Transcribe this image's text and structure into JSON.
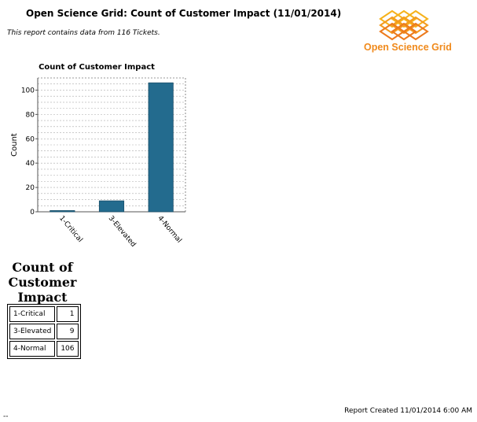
{
  "header": {
    "title": "Open Science Grid: Count of Customer Impact (11/01/2014)",
    "subtitle": "This report contains data from 116 Tickets."
  },
  "logo": {
    "text": "Open Science Grid",
    "icon": "osg-logo-icon",
    "color": "#f08a1c"
  },
  "chart_data": {
    "type": "bar",
    "title": "Count of Customer Impact",
    "xlabel": "",
    "ylabel": "Count",
    "categories": [
      "1-Critical",
      "3-Elevated",
      "4-Normal"
    ],
    "values": [
      1,
      9,
      106
    ],
    "ylim": [
      0,
      110
    ],
    "yticks": [
      0,
      20,
      40,
      60,
      80,
      100
    ],
    "grid": true,
    "bar_color": "#236b8e"
  },
  "table": {
    "title": "Count of Customer Impact",
    "rows": [
      {
        "label": "1-Critical",
        "value": "1"
      },
      {
        "label": "3-Elevated",
        "value": "9"
      },
      {
        "label": "4-Normal",
        "value": "106"
      }
    ]
  },
  "footer": {
    "created": "Report Created 11/01/2014 6:00 AM"
  },
  "stray_mark": "--"
}
